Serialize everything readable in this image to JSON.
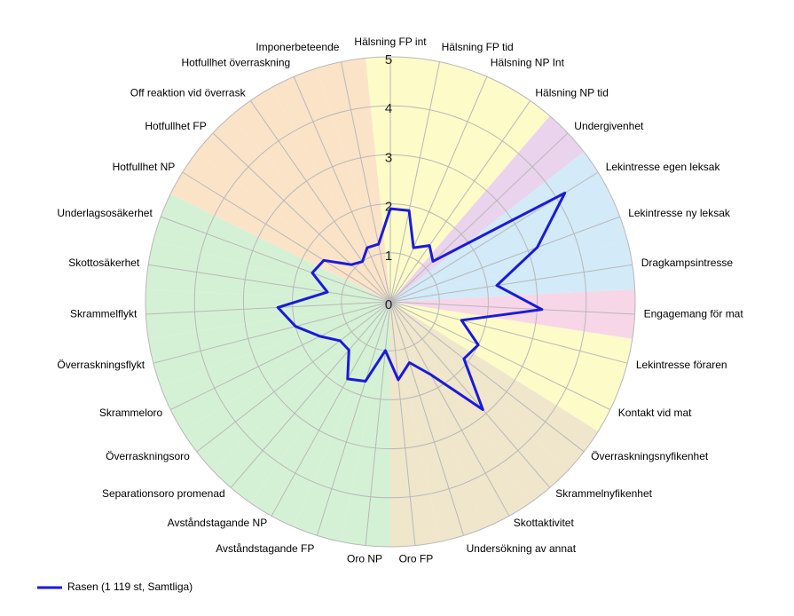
{
  "chart_data": {
    "type": "radar",
    "categories": [
      "Hälsning FP int",
      "Hälsning FP tid",
      "Hälsning NP Int",
      "Hälsning NP tid",
      "Undergivenhet",
      "Lekintresse egen leksak",
      "Lekintresse ny leksak",
      "Dragkampsintresse",
      "Engagemang för mat",
      "Lekintresse föraren",
      "Kontakt vid mat",
      "Överraskningsnyfikenhet",
      "Skrammelnyfikenhet",
      "Skottaktivitet",
      "Undersökning av annat",
      "Oro FP",
      "Oro NP",
      "Avståndstagande FP",
      "Avståndstagande NP",
      "Separationsoro promenad",
      "Överraskningsoro",
      "Skrammeloro",
      "Överraskningsflykt",
      "Skrammelflykt",
      "Skottosäkerhet",
      "Underlagsosäkerhet",
      "Hotfullhet NP",
      "Hotfullhet FP",
      "Off reaktion vid överrask",
      "Hotfullhet överraskning",
      "Imponerbeteende"
    ],
    "background_colors": [
      "#fdfbc8",
      "#fdfbc8",
      "#fdfbc8",
      "#fdfbc8",
      "#ead3ec",
      "#d3eaf8",
      "#d3eaf8",
      "#d3eaf8",
      "#f7d6e8",
      "#fdfbc8",
      "#fdfbc8",
      "#efe6cc",
      "#efe6cc",
      "#efe6cc",
      "#efe6cc",
      "#efe6cc",
      "#d5f1d5",
      "#d5f1d5",
      "#d5f1d5",
      "#d5f1d5",
      "#d5f1d5",
      "#d5f1d5",
      "#d5f1d5",
      "#d5f1d5",
      "#d5f1d5",
      "#d5f1d5",
      "#fbe3c8",
      "#fbe3c8",
      "#fbe3c8",
      "#fbe3c8",
      "#fbe3c8"
    ],
    "series": [
      {
        "name": "Rasen (1 119 st, Samtliga)",
        "color": "#1a1adc",
        "values": [
          1.9,
          1.9,
          1.2,
          1.4,
          1.2,
          4.2,
          3.2,
          2.2,
          3.1,
          1.5,
          2.0,
          1.9,
          2.9,
          1.7,
          1.3,
          1.6,
          1.0,
          1.7,
          1.8,
          1.3,
          1.3,
          1.6,
          2.0,
          2.3,
          1.3,
          1.7,
          1.6,
          1.1,
          1.0,
          1.2,
          1.2
        ]
      }
    ],
    "ylim": [
      0,
      5
    ],
    "yticks": [
      0,
      1,
      2,
      3,
      4,
      5
    ],
    "grid": true,
    "legend": "bottom-left"
  }
}
